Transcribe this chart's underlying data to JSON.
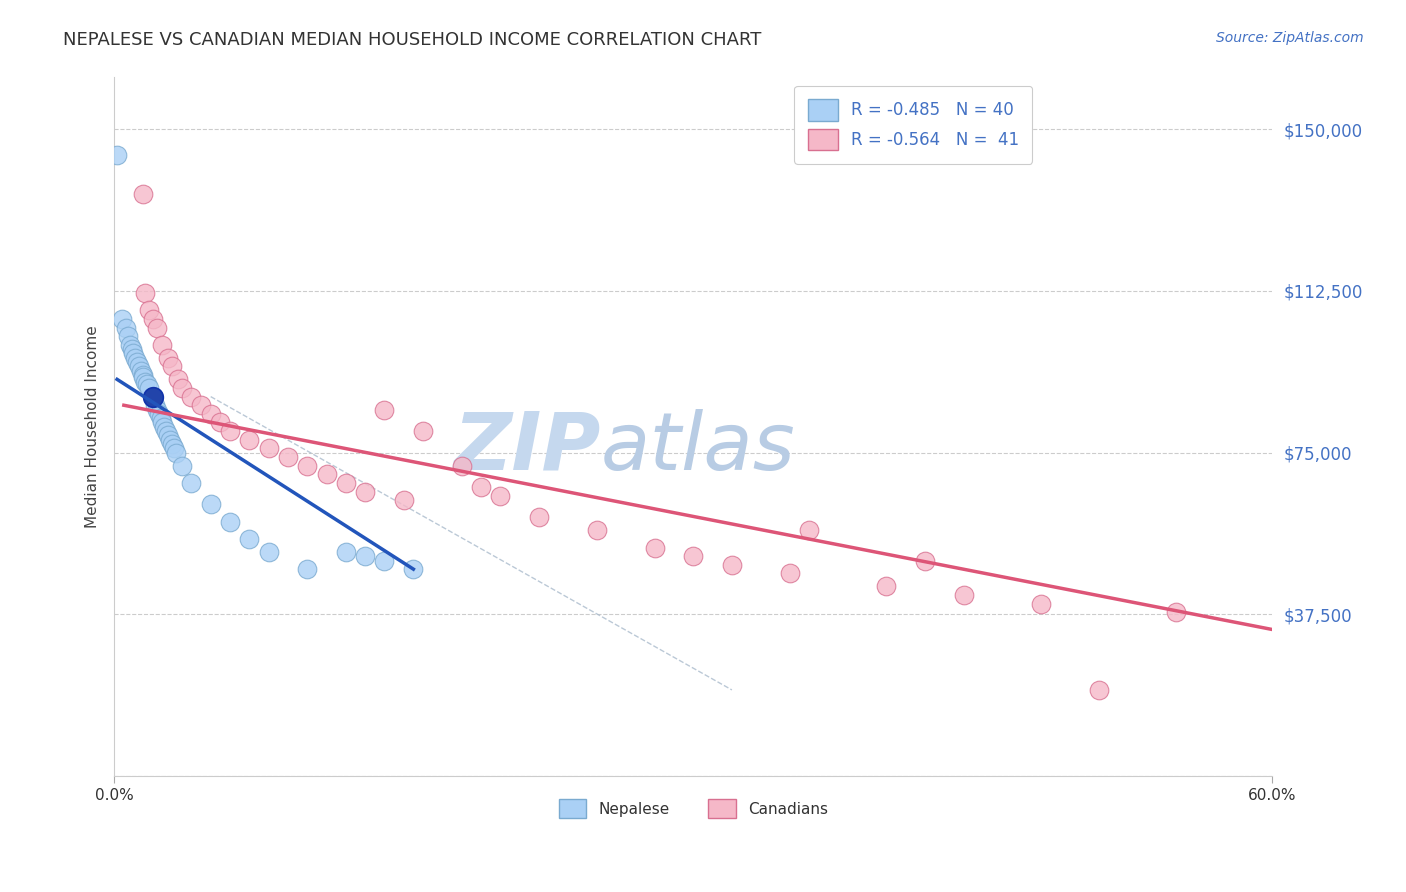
{
  "title": "NEPALESE VS CANADIAN MEDIAN HOUSEHOLD INCOME CORRELATION CHART",
  "source_text": "Source: ZipAtlas.com",
  "ylabel": "Median Household Income",
  "yticks": [
    0,
    37500,
    75000,
    112500,
    150000
  ],
  "ytick_labels": [
    "",
    "$37,500",
    "$75,000",
    "$112,500",
    "$150,000"
  ],
  "xmin": 0.0,
  "xmax": 60.0,
  "ymin": 0,
  "ymax": 162000,
  "legend_entry1": "R = -0.485   N = 40",
  "legend_entry2": "R = -0.564   N =  41",
  "legend_label1": "Nepalese",
  "legend_label2": "Canadians",
  "nepalese_color": "#aad0f5",
  "nepalese_edge": "#7aaad0",
  "canadian_color": "#f5b8c8",
  "canadian_edge": "#d87090",
  "nepalese_line_color": "#2255bb",
  "canadian_line_color": "#dd5577",
  "background_color": "#ffffff",
  "grid_color": "#cccccc",
  "title_color": "#333333",
  "source_color": "#4472c4",
  "watermark_color": "#dde8f5",
  "nepalese_x": [
    0.15,
    0.4,
    0.6,
    0.7,
    0.8,
    0.9,
    1.0,
    1.1,
    1.2,
    1.3,
    1.4,
    1.5,
    1.5,
    1.6,
    1.7,
    1.8,
    2.0,
    2.1,
    2.2,
    2.3,
    2.4,
    2.5,
    2.6,
    2.7,
    2.8,
    2.9,
    3.0,
    3.1,
    3.2,
    3.5,
    4.0,
    5.0,
    6.0,
    7.0,
    8.0,
    10.0,
    12.0,
    13.0,
    14.0,
    15.5
  ],
  "nepalese_y": [
    144000,
    106000,
    104000,
    102000,
    100000,
    99000,
    98000,
    97000,
    96000,
    95000,
    94000,
    93000,
    92500,
    91500,
    91000,
    90000,
    88000,
    86000,
    85000,
    84000,
    83000,
    82000,
    81000,
    80000,
    79000,
    78000,
    77000,
    76000,
    75000,
    72000,
    68000,
    63000,
    59000,
    55000,
    52000,
    48000,
    52000,
    51000,
    50000,
    48000
  ],
  "canadians_x": [
    1.5,
    1.6,
    1.8,
    2.0,
    2.2,
    2.5,
    2.8,
    3.0,
    3.3,
    3.5,
    4.0,
    4.5,
    5.0,
    5.5,
    6.0,
    7.0,
    8.0,
    9.0,
    10.0,
    11.0,
    12.0,
    13.0,
    14.0,
    15.0,
    16.0,
    18.0,
    19.0,
    20.0,
    22.0,
    25.0,
    28.0,
    30.0,
    32.0,
    35.0,
    36.0,
    40.0,
    42.0,
    44.0,
    48.0,
    51.0,
    55.0
  ],
  "canadians_y": [
    135000,
    112000,
    108000,
    106000,
    104000,
    100000,
    97000,
    95000,
    92000,
    90000,
    88000,
    86000,
    84000,
    82000,
    80000,
    78000,
    76000,
    74000,
    72000,
    70000,
    68000,
    66000,
    85000,
    64000,
    80000,
    72000,
    67000,
    65000,
    60000,
    57000,
    53000,
    51000,
    49000,
    47000,
    57000,
    44000,
    50000,
    42000,
    40000,
    20000,
    38000
  ],
  "nepalese_line_x0": 0.15,
  "nepalese_line_x1": 15.5,
  "nepalese_line_y0": 92000,
  "nepalese_line_y1": 48000,
  "canadian_line_x0": 0.5,
  "canadian_line_x1": 60.0,
  "canadian_line_y0": 86000,
  "canadian_line_y1": 34000,
  "diag_x0": 5.0,
  "diag_x1": 32.0,
  "diag_y0": 88000,
  "diag_y1": 20000
}
